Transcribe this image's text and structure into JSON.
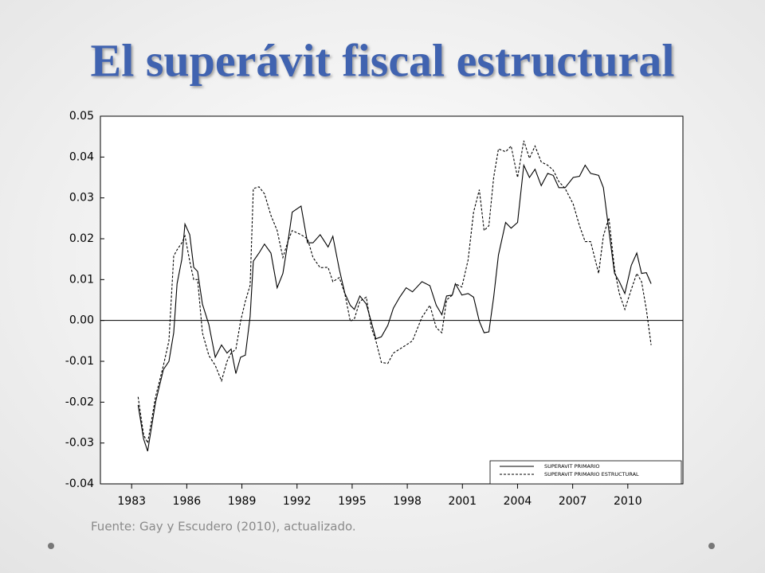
{
  "chart_data": {
    "type": "line",
    "title": "El superávit fiscal estructural",
    "source": "Fuente: Gay y Escudero (2010), actualizado.",
    "x": [
      1983.35,
      1983.65,
      1983.87,
      1984.3,
      1984.73,
      1985.03,
      1985.29,
      1985.47,
      1985.73,
      1985.9,
      1986.16,
      1986.38,
      1986.59,
      1986.85,
      1987.2,
      1987.55,
      1987.89,
      1988.19,
      1988.41,
      1988.67,
      1988.93,
      1989.19,
      1989.45,
      1989.62,
      1989.93,
      1990.23,
      1990.58,
      1990.92,
      1991.23,
      1991.53,
      1991.74,
      1992.22,
      1992.57,
      1992.87,
      1993.26,
      1993.69,
      1993.95,
      1994.3,
      1994.6,
      1994.9,
      1995.12,
      1995.42,
      1995.77,
      1996.03,
      1996.29,
      1996.59,
      1996.94,
      1997.24,
      1997.59,
      1997.94,
      1998.28,
      1998.8,
      1999.23,
      1999.58,
      1999.88,
      2000.14,
      2000.45,
      2000.62,
      2000.97,
      2001.31,
      2001.61,
      2001.92,
      2002.18,
      2002.44,
      2002.7,
      2002.96,
      2003.35,
      2003.65,
      2004.0,
      2004.34,
      2004.65,
      2004.95,
      2005.29,
      2005.64,
      2005.94,
      2006.25,
      2006.59,
      2007.03,
      2007.37,
      2007.68,
      2007.98,
      2008.41,
      2008.67,
      2008.97,
      2009.28,
      2009.54,
      2009.84,
      2010.19,
      2010.49,
      2010.75,
      2011.01,
      2011.27
    ],
    "series": [
      {
        "name": "SUPERAVIT PRIMARIO",
        "color": "#000000",
        "style": "solid",
        "values": [
          -0.0207,
          -0.029,
          -0.032,
          -0.02,
          -0.012,
          -0.01,
          -0.003,
          0.009,
          0.015,
          0.0236,
          0.021,
          0.013,
          0.012,
          0.004,
          -0.001,
          -0.009,
          -0.006,
          -0.008,
          -0.007,
          -0.013,
          -0.009,
          -0.0085,
          0.001,
          0.0145,
          0.0165,
          0.0187,
          0.0165,
          0.008,
          0.0115,
          0.02,
          0.0265,
          0.028,
          0.019,
          0.019,
          0.021,
          0.018,
          0.0206,
          0.0125,
          0.0067,
          0.0037,
          0.0027,
          0.006,
          0.004,
          -0.0002,
          -0.0045,
          -0.004,
          -0.0012,
          0.003,
          0.0057,
          0.008,
          0.007,
          0.0095,
          0.0085,
          0.0037,
          0.0014,
          0.006,
          0.0062,
          0.009,
          0.0062,
          0.0066,
          0.0057,
          -0.0002,
          -0.003,
          -0.0028,
          0.0057,
          0.016,
          0.024,
          0.0226,
          0.024,
          0.038,
          0.035,
          0.037,
          0.033,
          0.036,
          0.0355,
          0.0325,
          0.0325,
          0.035,
          0.0353,
          0.038,
          0.036,
          0.0355,
          0.0325,
          0.022,
          0.0115,
          0.0095,
          0.0066,
          0.0135,
          0.0165,
          0.0115,
          0.0117,
          0.009
        ]
      },
      {
        "name": "SUPERAVIT PRIMARIO ESTRUCTURAL",
        "color": "#000000",
        "style": "dashed",
        "values": [
          -0.0187,
          -0.028,
          -0.03,
          -0.0187,
          -0.011,
          -0.005,
          0.0158,
          0.0173,
          0.019,
          0.0207,
          0.0145,
          0.01,
          0.01,
          -0.003,
          -0.0086,
          -0.011,
          -0.0148,
          -0.01,
          -0.008,
          -0.007,
          -0.0002,
          0.0047,
          0.0086,
          0.0323,
          0.0327,
          0.031,
          0.0257,
          0.022,
          0.0154,
          0.0197,
          0.022,
          0.021,
          0.02,
          0.0154,
          0.0129,
          0.013,
          0.0095,
          0.0105,
          0.0066,
          -0.0002,
          0.0004,
          0.0047,
          0.0057,
          -0.0016,
          -0.005,
          -0.0103,
          -0.0105,
          -0.008,
          -0.007,
          -0.006,
          -0.005,
          0.0008,
          0.0037,
          -0.0018,
          -0.003,
          0.005,
          0.0062,
          0.009,
          0.0082,
          0.0148,
          0.0265,
          0.032,
          0.022,
          0.0232,
          0.035,
          0.042,
          0.0413,
          0.0427,
          0.035,
          0.044,
          0.0397,
          0.0427,
          0.0388,
          0.038,
          0.0368,
          0.034,
          0.0323,
          0.0285,
          0.0232,
          0.0193,
          0.0193,
          0.0115,
          0.0207,
          0.0251,
          0.0125,
          0.0066,
          0.0027,
          0.0076,
          0.0115,
          0.0095,
          0.0027,
          -0.006
        ]
      }
    ],
    "xlim": [
      1981.3,
      2013
    ],
    "xticks": [
      1983,
      1986,
      1989,
      1992,
      1995,
      1998,
      2001,
      2004,
      2007,
      2010
    ],
    "ylim": [
      -0.04,
      0.05
    ],
    "yticks": [
      0.05,
      0.04,
      0.03,
      0.02,
      0.01,
      {
        "value": 0,
        "label": "0.00"
      },
      -0.01,
      -0.02,
      -0.03,
      -0.04
    ],
    "zero_line": true,
    "legend": "lower right"
  }
}
